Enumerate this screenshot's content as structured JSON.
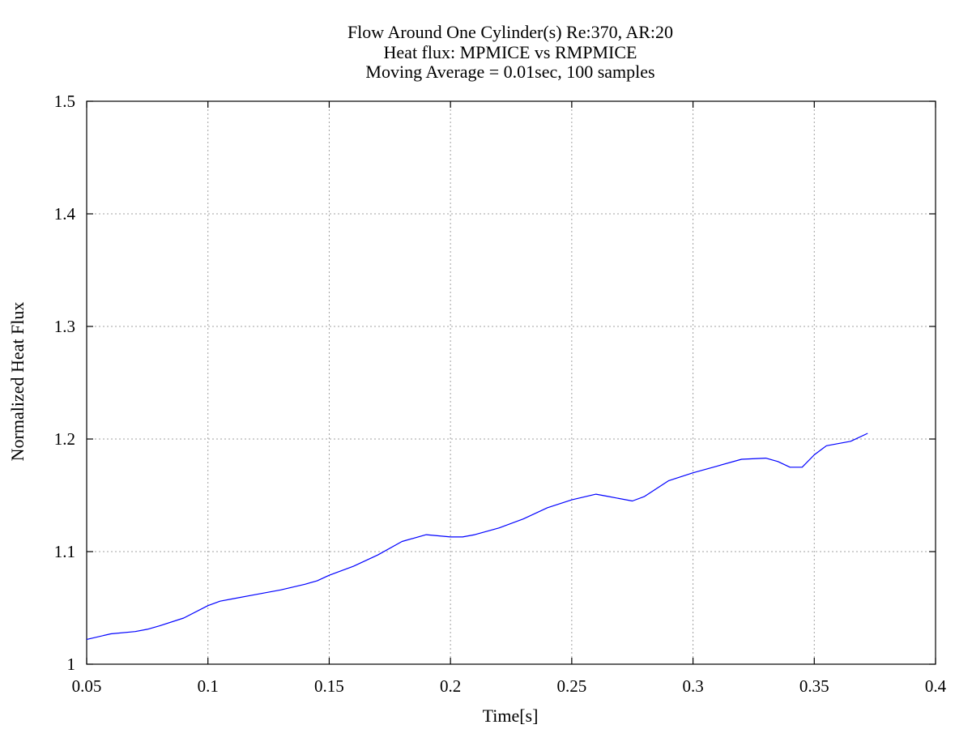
{
  "chart_data": {
    "type": "line",
    "title_lines": [
      "Flow Around One Cylinder(s) Re:370, AR:20",
      "Heat flux: MPMICE vs RMPMICE",
      "Moving Average = 0.01sec, 100 samples"
    ],
    "xlabel": "Time[s]",
    "ylabel": "Normalized Heat Flux",
    "xlim": [
      0.05,
      0.4
    ],
    "ylim": [
      1.0,
      1.5
    ],
    "x_ticks": [
      0.05,
      0.1,
      0.15,
      0.2,
      0.25,
      0.3,
      0.35,
      0.4
    ],
    "x_tick_labels": [
      "0.05",
      "0.1",
      "0.15",
      "0.2",
      "0.25",
      "0.3",
      "0.35",
      "0.4"
    ],
    "y_ticks": [
      1.0,
      1.1,
      1.2,
      1.3,
      1.4,
      1.5
    ],
    "y_tick_labels": [
      "1",
      "1.1",
      "1.2",
      "1.3",
      "1.4",
      "1.5"
    ],
    "grid": true,
    "colors": {
      "series": "#0000ff",
      "grid": "#a0a0a0",
      "axes": "#000000"
    },
    "series": [
      {
        "x": [
          0.05,
          0.06,
          0.07,
          0.075,
          0.08,
          0.09,
          0.1,
          0.105,
          0.11,
          0.12,
          0.13,
          0.14,
          0.145,
          0.15,
          0.16,
          0.17,
          0.18,
          0.19,
          0.2,
          0.205,
          0.21,
          0.22,
          0.23,
          0.24,
          0.25,
          0.26,
          0.265,
          0.275,
          0.28,
          0.29,
          0.3,
          0.31,
          0.32,
          0.33,
          0.335,
          0.34,
          0.345,
          0.35,
          0.355,
          0.365,
          0.372
        ],
        "y": [
          1.022,
          1.027,
          1.029,
          1.031,
          1.034,
          1.041,
          1.052,
          1.056,
          1.058,
          1.062,
          1.066,
          1.071,
          1.074,
          1.079,
          1.087,
          1.097,
          1.109,
          1.115,
          1.113,
          1.113,
          1.115,
          1.121,
          1.129,
          1.139,
          1.146,
          1.151,
          1.149,
          1.145,
          1.149,
          1.163,
          1.17,
          1.176,
          1.182,
          1.183,
          1.18,
          1.175,
          1.175,
          1.186,
          1.194,
          1.198,
          1.205
        ]
      }
    ]
  }
}
